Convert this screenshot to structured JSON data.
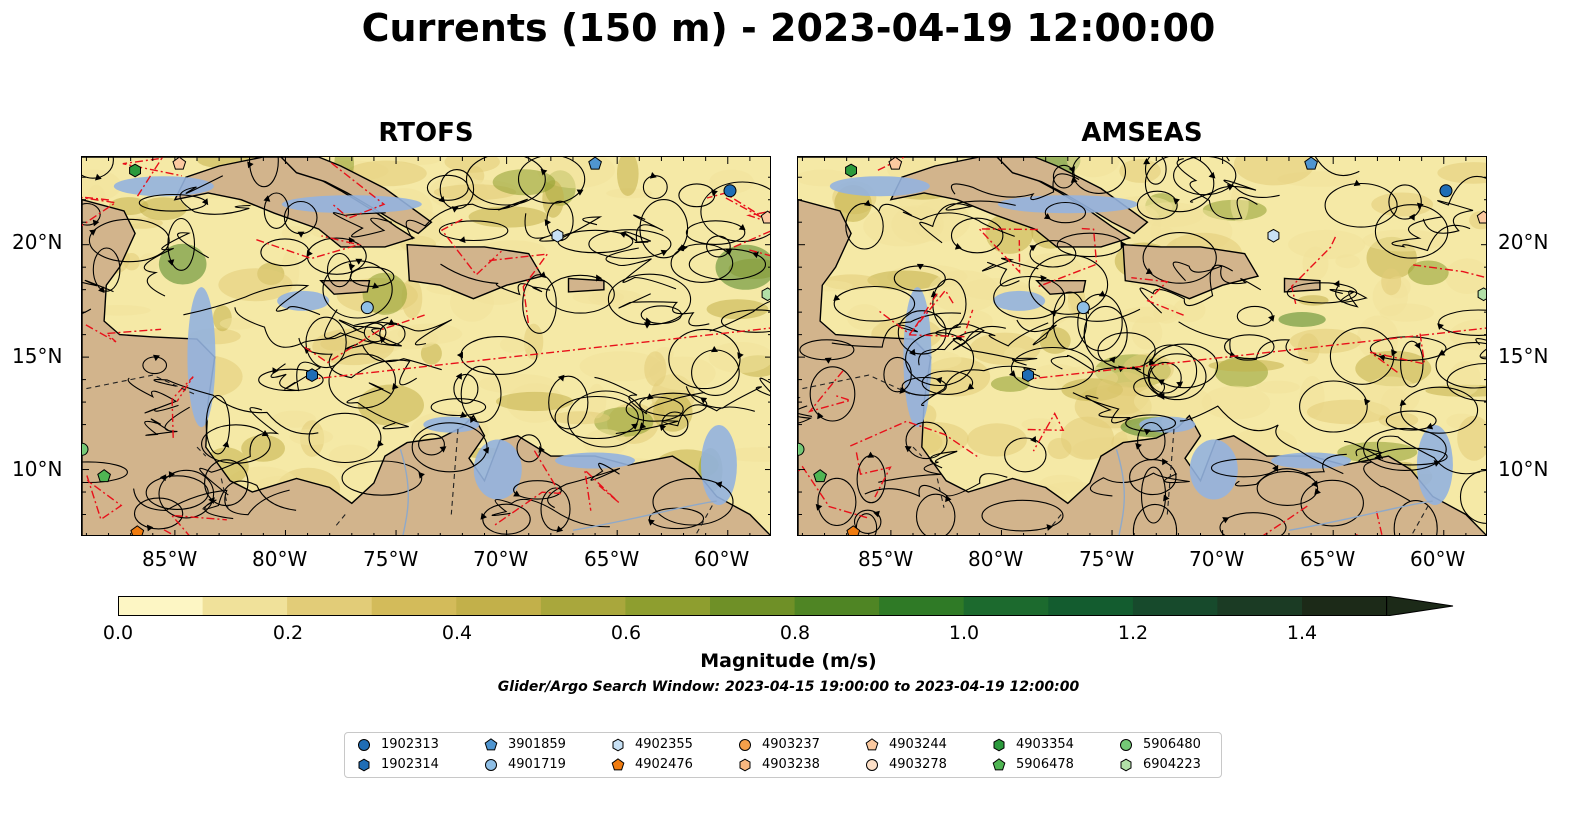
{
  "figure": {
    "title": "Currents (150 m) - 2023-04-19 12:00:00",
    "panels": [
      {
        "name": "RTOFS"
      },
      {
        "name": "AMSEAS"
      }
    ],
    "lat_labels": [
      "20°N",
      "15°N",
      "10°N"
    ],
    "lon_labels": [
      "85°W",
      "80°W",
      "75°W",
      "70°W",
      "65°W",
      "60°W"
    ],
    "extent": {
      "lon_min": -89.2,
      "lon_max": -58.0,
      "lat_min": 7.0,
      "lat_max": 23.9
    },
    "colorbar": {
      "label": "Magnitude (m/s)",
      "ticks": [
        "0.0",
        "0.2",
        "0.4",
        "0.6",
        "0.8",
        "1.0",
        "1.2",
        "1.4"
      ],
      "min": 0.0,
      "max": 1.5,
      "extend": "max",
      "colors": [
        "#fdf6c4",
        "#f0e19a",
        "#e2cc78",
        "#d3bb5a",
        "#c2b04a",
        "#a9a73c",
        "#8e9e2f",
        "#6f9027",
        "#4f8524",
        "#2f7a26",
        "#1c6a2e",
        "#135c2f",
        "#174a2c",
        "#1b3b24",
        "#1c2a18"
      ]
    },
    "window_text": "Glider/Argo Search Window: 2023-04-15 19:00:00 to 2023-04-19 12:00:00",
    "legend": [
      {
        "id": "1902313",
        "marker": "circle",
        "color": "#1f6db5"
      },
      {
        "id": "1902314",
        "marker": "hexagon",
        "color": "#1f6db5"
      },
      {
        "id": "3901859",
        "marker": "pentagon",
        "color": "#4f95d0"
      },
      {
        "id": "4901719",
        "marker": "circle",
        "color": "#8fbfe6"
      },
      {
        "id": "4902355",
        "marker": "hexagon",
        "color": "#c8e1f5"
      },
      {
        "id": "4902476",
        "marker": "pentagon",
        "color": "#f07c10"
      },
      {
        "id": "4903237",
        "marker": "circle",
        "color": "#f5a04a"
      },
      {
        "id": "4903238",
        "marker": "hexagon",
        "color": "#f8b780"
      },
      {
        "id": "4903244",
        "marker": "pentagon",
        "color": "#fbc9a0"
      },
      {
        "id": "4903278",
        "marker": "circle",
        "color": "#fde0c8"
      },
      {
        "id": "4903354",
        "marker": "hexagon",
        "color": "#2b9a3c"
      },
      {
        "id": "5906478",
        "marker": "pentagon",
        "color": "#4fb553"
      },
      {
        "id": "5906480",
        "marker": "circle",
        "color": "#74c876"
      },
      {
        "id": "6904223",
        "marker": "hexagon",
        "color": "#b2e0a8"
      }
    ],
    "floats_on_map": [
      {
        "id": "4903354",
        "lon": -86.8,
        "lat": 23.3
      },
      {
        "id": "4903244",
        "lon": -84.8,
        "lat": 23.6
      },
      {
        "id": "3901859",
        "lon": -66.0,
        "lat": 23.6
      },
      {
        "id": "1902313",
        "lon": -59.9,
        "lat": 22.4
      },
      {
        "id": "4903244",
        "lon": -58.2,
        "lat": 21.2
      },
      {
        "id": "4902355",
        "lon": -67.7,
        "lat": 20.4
      },
      {
        "id": "4901719",
        "lon": -76.3,
        "lat": 17.2
      },
      {
        "id": "1902314",
        "lon": -78.8,
        "lat": 14.2
      },
      {
        "id": "6904223",
        "lon": -58.2,
        "lat": 17.8
      },
      {
        "id": "5906480",
        "lon": -89.2,
        "lat": 10.9
      },
      {
        "id": "5906478",
        "lon": -88.2,
        "lat": 9.7
      },
      {
        "id": "4902476",
        "lon": -86.7,
        "lat": 7.2
      }
    ]
  }
}
